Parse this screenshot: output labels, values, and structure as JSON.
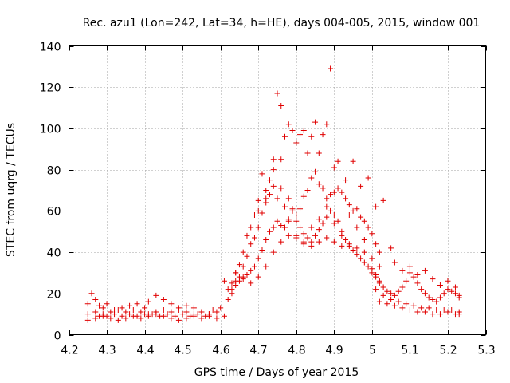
{
  "chart_data": {
    "type": "scatter",
    "title": "Rec. azu1 (Lon=242, Lat=34, h=HE), days 004-005, 2015, window 001",
    "xlabel": "GPS time / Days of year 2015",
    "ylabel": "STEC from uqrg / TECUs",
    "xlim": [
      4.2,
      5.3
    ],
    "ylim": [
      0,
      140
    ],
    "xticks": [
      "4.2",
      "4.3",
      "4.4",
      "4.5",
      "4.6",
      "4.7",
      "4.8",
      "4.9",
      "5",
      "5.1",
      "5.2",
      "5.3"
    ],
    "yticks": [
      "0",
      "20",
      "40",
      "60",
      "80",
      "100",
      "120",
      "140"
    ],
    "grid": true,
    "marker": "+",
    "color": "#e00000",
    "points": [
      [
        4.25,
        15
      ],
      [
        4.26,
        20
      ],
      [
        4.27,
        17
      ],
      [
        4.28,
        14
      ],
      [
        4.29,
        13
      ],
      [
        4.3,
        15
      ],
      [
        4.32,
        12
      ],
      [
        4.34,
        13
      ],
      [
        4.36,
        14
      ],
      [
        4.38,
        15
      ],
      [
        4.4,
        13
      ],
      [
        4.41,
        16
      ],
      [
        4.43,
        19
      ],
      [
        4.45,
        17
      ],
      [
        4.47,
        15
      ],
      [
        4.49,
        13
      ],
      [
        4.51,
        14
      ],
      [
        4.53,
        13
      ],
      [
        4.55,
        11
      ],
      [
        4.57,
        10
      ],
      [
        4.58,
        12
      ],
      [
        4.6,
        13
      ],
      [
        4.25,
        10
      ],
      [
        4.27,
        11
      ],
      [
        4.29,
        10
      ],
      [
        4.31,
        11
      ],
      [
        4.33,
        12
      ],
      [
        4.35,
        11
      ],
      [
        4.37,
        12
      ],
      [
        4.39,
        11
      ],
      [
        4.41,
        10
      ],
      [
        4.43,
        11
      ],
      [
        4.45,
        12
      ],
      [
        4.47,
        11
      ],
      [
        4.49,
        12
      ],
      [
        4.51,
        11
      ],
      [
        4.53,
        10
      ],
      [
        4.55,
        11
      ],
      [
        4.57,
        10
      ],
      [
        4.59,
        11
      ],
      [
        4.25,
        7
      ],
      [
        4.27,
        8
      ],
      [
        4.29,
        9
      ],
      [
        4.31,
        8
      ],
      [
        4.33,
        7
      ],
      [
        4.35,
        8
      ],
      [
        4.37,
        9
      ],
      [
        4.39,
        8
      ],
      [
        4.41,
        9
      ],
      [
        4.43,
        10
      ],
      [
        4.45,
        9
      ],
      [
        4.47,
        8
      ],
      [
        4.49,
        7
      ],
      [
        4.51,
        8
      ],
      [
        4.53,
        9
      ],
      [
        4.55,
        8
      ],
      [
        4.57,
        9
      ],
      [
        4.59,
        8
      ],
      [
        4.61,
        9
      ],
      [
        4.28,
        9
      ],
      [
        4.3,
        9
      ],
      [
        4.32,
        10
      ],
      [
        4.34,
        9
      ],
      [
        4.36,
        10
      ],
      [
        4.38,
        9
      ],
      [
        4.4,
        10
      ],
      [
        4.42,
        10
      ],
      [
        4.44,
        9
      ],
      [
        4.46,
        10
      ],
      [
        4.48,
        9
      ],
      [
        4.5,
        10
      ],
      [
        4.52,
        9
      ],
      [
        4.54,
        10
      ],
      [
        4.56,
        9
      ],
      [
        4.61,
        26
      ],
      [
        4.62,
        22
      ],
      [
        4.63,
        25
      ],
      [
        4.64,
        30
      ],
      [
        4.65,
        34
      ],
      [
        4.66,
        40
      ],
      [
        4.67,
        48
      ],
      [
        4.68,
        52
      ],
      [
        4.69,
        58
      ],
      [
        4.7,
        65
      ],
      [
        4.71,
        78
      ],
      [
        4.72,
        70
      ],
      [
        4.73,
        75
      ],
      [
        4.74,
        85
      ],
      [
        4.75,
        117
      ],
      [
        4.76,
        111
      ],
      [
        4.77,
        96
      ],
      [
        4.78,
        102
      ],
      [
        4.79,
        99
      ],
      [
        4.8,
        93
      ],
      [
        4.81,
        97
      ],
      [
        4.82,
        99
      ],
      [
        4.83,
        88
      ],
      [
        4.84,
        96
      ],
      [
        4.85,
        103
      ],
      [
        4.86,
        88
      ],
      [
        4.87,
        97
      ],
      [
        4.88,
        102
      ],
      [
        4.89,
        129
      ],
      [
        4.9,
        81
      ],
      [
        4.91,
        84
      ],
      [
        4.93,
        75
      ],
      [
        4.95,
        84
      ],
      [
        4.97,
        72
      ],
      [
        4.99,
        76
      ],
      [
        5.01,
        62
      ],
      [
        5.03,
        65
      ],
      [
        5.05,
        42
      ],
      [
        4.62,
        17
      ],
      [
        4.63,
        20
      ],
      [
        4.64,
        26
      ],
      [
        4.65,
        28
      ],
      [
        4.66,
        33
      ],
      [
        4.67,
        38
      ],
      [
        4.68,
        44
      ],
      [
        4.69,
        47
      ],
      [
        4.7,
        52
      ],
      [
        4.71,
        59
      ],
      [
        4.72,
        64
      ],
      [
        4.73,
        68
      ],
      [
        4.74,
        72
      ],
      [
        4.75,
        66
      ],
      [
        4.76,
        71
      ],
      [
        4.77,
        62
      ],
      [
        4.78,
        66
      ],
      [
        4.79,
        61
      ],
      [
        4.8,
        58
      ],
      [
        4.81,
        61
      ],
      [
        4.82,
        67
      ],
      [
        4.83,
        70
      ],
      [
        4.84,
        76
      ],
      [
        4.85,
        79
      ],
      [
        4.86,
        73
      ],
      [
        4.87,
        71
      ],
      [
        4.88,
        66
      ],
      [
        4.89,
        68
      ],
      [
        4.9,
        69
      ],
      [
        4.91,
        71
      ],
      [
        4.92,
        69
      ],
      [
        4.93,
        66
      ],
      [
        4.94,
        63
      ],
      [
        4.95,
        60
      ],
      [
        4.96,
        61
      ],
      [
        4.97,
        57
      ],
      [
        4.98,
        55
      ],
      [
        4.99,
        52
      ],
      [
        5.0,
        49
      ],
      [
        5.01,
        44
      ],
      [
        5.02,
        40
      ],
      [
        4.63,
        22
      ],
      [
        4.64,
        24
      ],
      [
        4.65,
        26
      ],
      [
        4.66,
        28
      ],
      [
        4.67,
        29
      ],
      [
        4.68,
        31
      ],
      [
        4.69,
        33
      ],
      [
        4.7,
        37
      ],
      [
        4.71,
        41
      ],
      [
        4.72,
        46
      ],
      [
        4.73,
        50
      ],
      [
        4.74,
        52
      ],
      [
        4.75,
        55
      ],
      [
        4.76,
        53
      ],
      [
        4.77,
        52
      ],
      [
        4.78,
        56
      ],
      [
        4.79,
        60
      ],
      [
        4.8,
        55
      ],
      [
        4.81,
        52
      ],
      [
        4.82,
        49
      ],
      [
        4.83,
        47
      ],
      [
        4.84,
        45
      ],
      [
        4.85,
        48
      ],
      [
        4.86,
        51
      ],
      [
        4.87,
        54
      ],
      [
        4.88,
        57
      ],
      [
        4.89,
        60
      ],
      [
        4.9,
        58
      ],
      [
        4.91,
        55
      ],
      [
        4.92,
        50
      ],
      [
        4.93,
        46
      ],
      [
        4.94,
        43
      ],
      [
        4.95,
        41
      ],
      [
        4.96,
        39
      ],
      [
        4.97,
        37
      ],
      [
        4.98,
        35
      ],
      [
        4.99,
        33
      ],
      [
        5.0,
        30
      ],
      [
        5.01,
        28
      ],
      [
        5.02,
        26
      ],
      [
        4.64,
        30
      ],
      [
        4.66,
        27
      ],
      [
        4.68,
        25
      ],
      [
        4.7,
        28
      ],
      [
        4.72,
        33
      ],
      [
        4.74,
        40
      ],
      [
        4.76,
        45
      ],
      [
        4.78,
        48
      ],
      [
        4.8,
        47
      ],
      [
        4.82,
        45
      ],
      [
        4.84,
        43
      ],
      [
        4.86,
        45
      ],
      [
        4.88,
        47
      ],
      [
        4.9,
        45
      ],
      [
        4.92,
        43
      ],
      [
        4.94,
        44
      ],
      [
        4.96,
        42
      ],
      [
        4.98,
        40
      ],
      [
        5.0,
        37
      ],
      [
        5.02,
        33
      ],
      [
        4.7,
        60
      ],
      [
        4.72,
        66
      ],
      [
        4.74,
        80
      ],
      [
        4.76,
        85
      ],
      [
        4.78,
        55
      ],
      [
        4.8,
        48
      ],
      [
        4.82,
        44
      ],
      [
        4.84,
        52
      ],
      [
        4.86,
        56
      ],
      [
        4.88,
        62
      ],
      [
        4.9,
        54
      ],
      [
        4.92,
        48
      ],
      [
        4.94,
        58
      ],
      [
        4.96,
        52
      ],
      [
        4.98,
        46
      ],
      [
        5.0,
        32
      ],
      [
        5.01,
        29
      ],
      [
        5.02,
        25
      ],
      [
        5.03,
        23
      ],
      [
        5.04,
        21
      ],
      [
        5.05,
        20
      ],
      [
        5.06,
        19
      ],
      [
        5.07,
        21
      ],
      [
        5.08,
        23
      ],
      [
        5.09,
        26
      ],
      [
        5.1,
        30
      ],
      [
        5.11,
        28
      ],
      [
        5.12,
        25
      ],
      [
        5.13,
        22
      ],
      [
        5.14,
        20
      ],
      [
        5.15,
        18
      ],
      [
        5.16,
        17
      ],
      [
        5.17,
        16
      ],
      [
        5.18,
        18
      ],
      [
        5.19,
        20
      ],
      [
        5.2,
        22
      ],
      [
        5.21,
        21
      ],
      [
        5.22,
        20
      ],
      [
        5.23,
        19
      ],
      [
        5.01,
        22
      ],
      [
        5.03,
        19
      ],
      [
        5.05,
        17
      ],
      [
        5.07,
        16
      ],
      [
        5.09,
        15
      ],
      [
        5.11,
        14
      ],
      [
        5.13,
        13
      ],
      [
        5.15,
        13
      ],
      [
        5.17,
        12
      ],
      [
        5.19,
        12
      ],
      [
        5.21,
        12
      ],
      [
        5.23,
        11
      ],
      [
        5.02,
        16
      ],
      [
        5.04,
        15
      ],
      [
        5.06,
        14
      ],
      [
        5.08,
        13
      ],
      [
        5.1,
        12
      ],
      [
        5.12,
        11
      ],
      [
        5.14,
        11
      ],
      [
        5.16,
        10
      ],
      [
        5.18,
        10
      ],
      [
        5.2,
        11
      ],
      [
        5.22,
        10
      ],
      [
        5.23,
        10
      ],
      [
        5.06,
        35
      ],
      [
        5.08,
        31
      ],
      [
        5.1,
        33
      ],
      [
        5.12,
        29
      ],
      [
        5.14,
        31
      ],
      [
        5.16,
        27
      ],
      [
        5.18,
        24
      ],
      [
        5.2,
        26
      ],
      [
        5.22,
        23
      ],
      [
        5.23,
        18
      ]
    ]
  }
}
